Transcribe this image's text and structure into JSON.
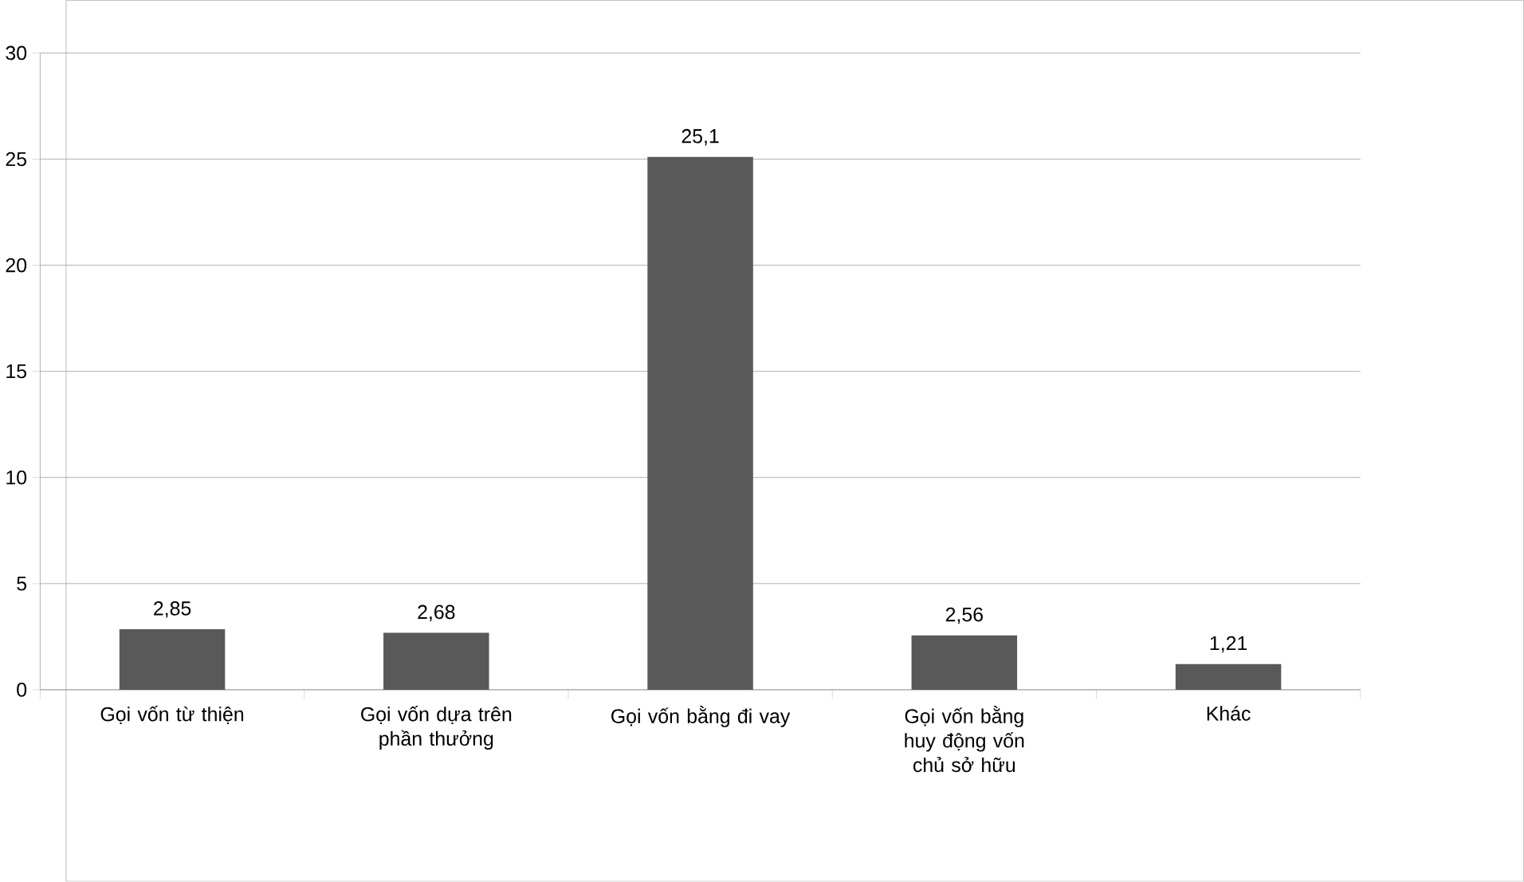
{
  "chart_data": {
    "type": "bar",
    "categories": [
      "Gọi vốn từ thiện",
      "Gọi vốn dựa trên phần thưởng",
      "Gọi vốn bằng đi vay",
      "Gọi vốn bằng huy động vốn chủ sở hữu",
      "Khác"
    ],
    "values": [
      2.85,
      2.68,
      25.1,
      2.56,
      1.21
    ],
    "value_labels": [
      "2,85",
      "2,68",
      "25,1",
      "2,56",
      "1,21"
    ],
    "color": "#595959",
    "ylim": [
      0,
      30
    ],
    "yticks": [
      0,
      5,
      10,
      15,
      20,
      25,
      30
    ],
    "grid": "y"
  }
}
